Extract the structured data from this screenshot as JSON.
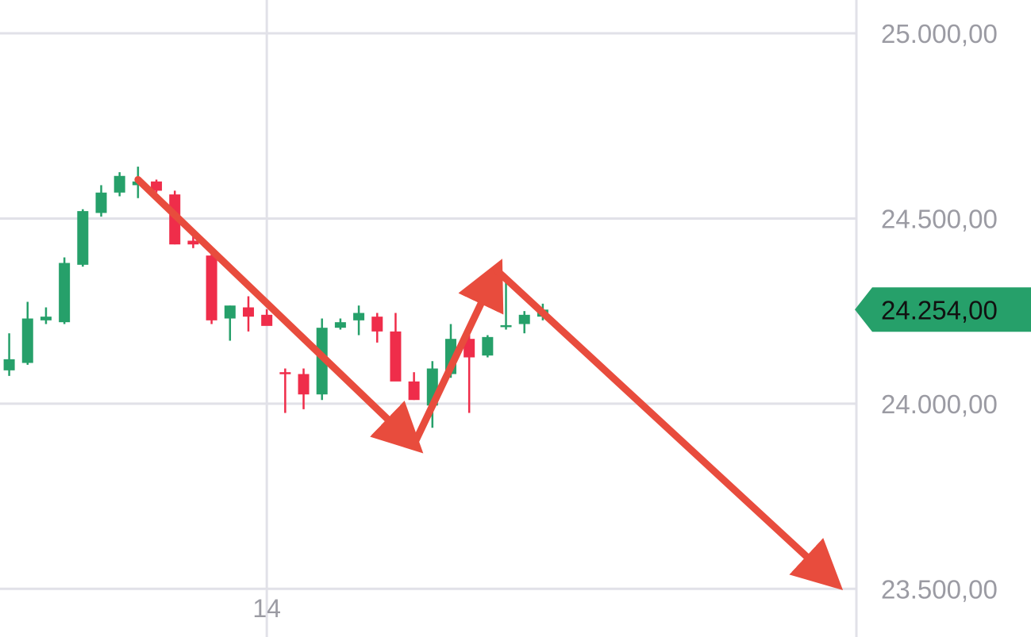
{
  "chart_data": {
    "type": "candlestick",
    "y_axis": {
      "ticks": [
        {
          "value": 25000,
          "label": "25.000,00"
        },
        {
          "value": 24500,
          "label": "24.500,00"
        },
        {
          "value": 24000,
          "label": "24.000,00"
        },
        {
          "value": 23500,
          "label": "23.500,00"
        }
      ],
      "range": [
        23370,
        25090
      ],
      "position": "right"
    },
    "x_axis": {
      "ticks": [
        {
          "index": 14,
          "label": "14"
        }
      ],
      "range": [
        -0.5,
        46
      ]
    },
    "grid": true,
    "current_price": {
      "value": 24254,
      "label": "24.254,00"
    },
    "colors": {
      "up": "#26a06a",
      "down": "#ef2d4a",
      "grid": "#e1e1e8",
      "axis_text": "#9b9ba3",
      "price_tag": "#26a06a",
      "arrow": "#e84c3d"
    },
    "candles": [
      {
        "i": 0,
        "o": 24090,
        "h": 24190,
        "l": 24075,
        "c": 24120
      },
      {
        "i": 1,
        "o": 24110,
        "h": 24275,
        "l": 24105,
        "c": 24230
      },
      {
        "i": 2,
        "o": 24225,
        "h": 24260,
        "l": 24215,
        "c": 24235
      },
      {
        "i": 3,
        "o": 24220,
        "h": 24395,
        "l": 24215,
        "c": 24380
      },
      {
        "i": 4,
        "o": 24375,
        "h": 24525,
        "l": 24370,
        "c": 24520
      },
      {
        "i": 5,
        "o": 24515,
        "h": 24590,
        "l": 24505,
        "c": 24570
      },
      {
        "i": 6,
        "o": 24570,
        "h": 24625,
        "l": 24560,
        "c": 24615
      },
      {
        "i": 7,
        "o": 24590,
        "h": 24640,
        "l": 24555,
        "c": 24600
      },
      {
        "i": 8,
        "o": 24600,
        "h": 24605,
        "l": 24570,
        "c": 24575
      },
      {
        "i": 9,
        "o": 24565,
        "h": 24575,
        "l": 24430,
        "c": 24430
      },
      {
        "i": 10,
        "o": 24440,
        "h": 24470,
        "l": 24420,
        "c": 24430
      },
      {
        "i": 11,
        "o": 24400,
        "h": 24425,
        "l": 24215,
        "c": 24225
      },
      {
        "i": 12,
        "o": 24230,
        "h": 24265,
        "l": 24170,
        "c": 24265
      },
      {
        "i": 13,
        "o": 24260,
        "h": 24290,
        "l": 24195,
        "c": 24235
      },
      {
        "i": 14,
        "o": 24240,
        "h": 24255,
        "l": 24215,
        "c": 24210
      },
      {
        "i": 15,
        "o": 24085,
        "h": 24095,
        "l": 23975,
        "c": 24080
      },
      {
        "i": 16,
        "o": 24080,
        "h": 24095,
        "l": 23985,
        "c": 24025
      },
      {
        "i": 17,
        "o": 24025,
        "h": 24230,
        "l": 24010,
        "c": 24205
      },
      {
        "i": 18,
        "o": 24205,
        "h": 24230,
        "l": 24200,
        "c": 24220
      },
      {
        "i": 19,
        "o": 24225,
        "h": 24265,
        "l": 24185,
        "c": 24245
      },
      {
        "i": 20,
        "o": 24235,
        "h": 24245,
        "l": 24165,
        "c": 24195
      },
      {
        "i": 21,
        "o": 24195,
        "h": 24245,
        "l": 24065,
        "c": 24060
      },
      {
        "i": 22,
        "o": 24060,
        "h": 24085,
        "l": 24010,
        "c": 24010
      },
      {
        "i": 23,
        "o": 23995,
        "h": 24115,
        "l": 23935,
        "c": 24095
      },
      {
        "i": 24,
        "o": 24080,
        "h": 24215,
        "l": 24070,
        "c": 24175
      },
      {
        "i": 25,
        "o": 24175,
        "h": 24195,
        "l": 23975,
        "c": 24125
      },
      {
        "i": 26,
        "o": 24130,
        "h": 24185,
        "l": 24125,
        "c": 24180
      },
      {
        "i": 27,
        "o": 24210,
        "h": 24340,
        "l": 24200,
        "c": 24212
      },
      {
        "i": 28,
        "o": 24215,
        "h": 24250,
        "l": 24190,
        "c": 24240
      },
      {
        "i": 29,
        "o": 24235,
        "h": 24270,
        "l": 24225,
        "c": 24254
      }
    ],
    "annotations": [
      {
        "type": "arrow",
        "from": {
          "i": 7,
          "price": 24605
        },
        "to": {
          "i": 22,
          "price": 23890
        }
      },
      {
        "type": "arrow",
        "from": {
          "i": 22,
          "price": 23890
        },
        "to": {
          "i": 26.5,
          "price": 24360
        }
      },
      {
        "type": "arrow",
        "from": {
          "i": 26.5,
          "price": 24360
        },
        "to": {
          "i": 44.8,
          "price": 23520
        }
      }
    ]
  }
}
